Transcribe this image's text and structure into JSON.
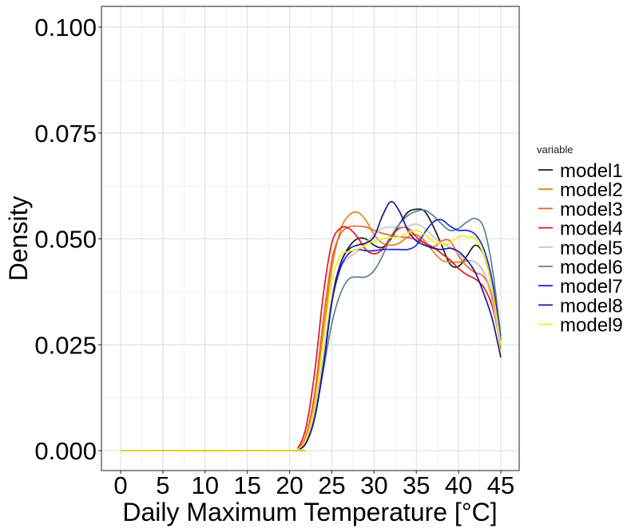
{
  "chart_data": {
    "type": "line",
    "title": "",
    "xlabel": "Daily Maximum Temperature [°C]",
    "ylabel": "Density",
    "xlim": [
      -1,
      47
    ],
    "ylim": [
      -0.005,
      0.105
    ],
    "x_ticks": [
      0,
      5,
      10,
      15,
      20,
      25,
      30,
      35,
      40,
      45
    ],
    "x_tick_labels": [
      "0",
      "5",
      "10",
      "15",
      "20",
      "25",
      "30",
      "35",
      "40",
      "45"
    ],
    "y_ticks": [
      0.0,
      0.025,
      0.05,
      0.075,
      0.1
    ],
    "y_tick_labels": [
      "0.000",
      "0.025",
      "0.050",
      "0.075",
      "0.100"
    ],
    "grid": true,
    "legend": {
      "title": "variable",
      "position": "right"
    },
    "series": [
      {
        "name": "model1",
        "color": "#1a1a1a",
        "x": [
          0,
          20,
          21,
          22,
          23,
          24,
          25,
          26,
          27,
          28,
          29,
          30,
          31,
          32,
          33,
          34,
          35,
          36,
          37,
          38,
          39,
          40,
          41,
          42,
          43,
          44,
          45
        ],
        "y": [
          0,
          0,
          0.0003,
          0.002,
          0.009,
          0.022,
          0.036,
          0.044,
          0.048,
          0.05,
          0.05,
          0.0485,
          0.048,
          0.05,
          0.0535,
          0.0563,
          0.057,
          0.0565,
          0.053,
          0.0485,
          0.044,
          0.0435,
          0.046,
          0.0485,
          0.046,
          0.038,
          0.025
        ]
      },
      {
        "name": "model2",
        "color": "#d4891c",
        "x": [
          0,
          20,
          21,
          22,
          23,
          24,
          25,
          26,
          27,
          28,
          29,
          30,
          31,
          32,
          33,
          34,
          35,
          36,
          37,
          38,
          39,
          40,
          41,
          42,
          43,
          44,
          45
        ],
        "y": [
          0,
          0,
          0.0004,
          0.003,
          0.012,
          0.028,
          0.043,
          0.052,
          0.0555,
          0.0563,
          0.0545,
          0.051,
          0.049,
          0.0485,
          0.049,
          0.0505,
          0.051,
          0.0495,
          0.047,
          0.045,
          0.0445,
          0.0445,
          0.0448,
          0.0445,
          0.042,
          0.036,
          0.024
        ]
      },
      {
        "name": "model3",
        "color": "#f0602a",
        "x": [
          0,
          20,
          21,
          22,
          23,
          24,
          25,
          26,
          27,
          28,
          29,
          30,
          31,
          32,
          33,
          34,
          35,
          36,
          37,
          38,
          39,
          40,
          41,
          42,
          43,
          44,
          45
        ],
        "y": [
          0,
          0,
          0.0005,
          0.004,
          0.014,
          0.031,
          0.045,
          0.051,
          0.0528,
          0.053,
          0.0528,
          0.052,
          0.0513,
          0.0508,
          0.0505,
          0.0503,
          0.0498,
          0.049,
          0.048,
          0.0495,
          0.0495,
          0.046,
          0.0435,
          0.042,
          0.041,
          0.036,
          0.025
        ]
      },
      {
        "name": "model4",
        "color": "#e8141a",
        "x": [
          0,
          20,
          21,
          22,
          23,
          24,
          25,
          26,
          27,
          28,
          29,
          30,
          31,
          32,
          33,
          34,
          35,
          36,
          37,
          38,
          39,
          40,
          41,
          42,
          43,
          44,
          45
        ],
        "y": [
          0,
          0,
          0.0007,
          0.006,
          0.019,
          0.037,
          0.049,
          0.0525,
          0.0525,
          0.0505,
          0.0475,
          0.0465,
          0.0475,
          0.0505,
          0.0525,
          0.0525,
          0.0505,
          0.049,
          0.048,
          0.0465,
          0.045,
          0.043,
          0.0415,
          0.0405,
          0.0385,
          0.034,
          0.025
        ]
      },
      {
        "name": "model5",
        "color": "#c8c8c8",
        "x": [
          0,
          20,
          21,
          22,
          23,
          24,
          25,
          26,
          27,
          28,
          29,
          30,
          31,
          32,
          33,
          34,
          35,
          36,
          37,
          38,
          39,
          40,
          41,
          42,
          43,
          44,
          45
        ],
        "y": [
          0,
          0,
          0.0003,
          0.002,
          0.009,
          0.022,
          0.036,
          0.043,
          0.0455,
          0.047,
          0.049,
          0.051,
          0.0525,
          0.0528,
          0.0528,
          0.053,
          0.0535,
          0.0525,
          0.0505,
          0.049,
          0.048,
          0.0465,
          0.045,
          0.0445,
          0.042,
          0.035,
          0.025
        ]
      },
      {
        "name": "model6",
        "color": "#5f7f94",
        "x": [
          0,
          20,
          21,
          22,
          23,
          24,
          25,
          26,
          27,
          28,
          29,
          30,
          31,
          32,
          33,
          34,
          35,
          36,
          37,
          38,
          39,
          40,
          41,
          42,
          43,
          44,
          45
        ],
        "y": [
          0,
          0,
          0.0003,
          0.002,
          0.008,
          0.019,
          0.03,
          0.037,
          0.0405,
          0.041,
          0.041,
          0.0425,
          0.046,
          0.0505,
          0.0535,
          0.0555,
          0.0565,
          0.0568,
          0.0555,
          0.0535,
          0.052,
          0.0525,
          0.054,
          0.0548,
          0.0525,
          0.043,
          0.027
        ]
      },
      {
        "name": "model7",
        "color": "#1e28d8",
        "x": [
          0,
          20,
          21,
          22,
          23,
          24,
          25,
          26,
          27,
          28,
          29,
          30,
          31,
          32,
          33,
          34,
          35,
          36,
          37,
          38,
          39,
          40,
          41,
          42,
          43,
          44,
          45
        ],
        "y": [
          0,
          0,
          0.0002,
          0.002,
          0.008,
          0.02,
          0.035,
          0.043,
          0.0465,
          0.0475,
          0.0472,
          0.0472,
          0.0475,
          0.0475,
          0.0475,
          0.0475,
          0.0485,
          0.0515,
          0.054,
          0.0545,
          0.053,
          0.052,
          0.052,
          0.051,
          0.0475,
          0.04,
          0.026
        ]
      },
      {
        "name": "model8",
        "color": "#1a1a8c",
        "x": [
          0,
          20,
          21,
          22,
          23,
          24,
          25,
          26,
          27,
          28,
          29,
          30,
          31,
          32,
          33,
          34,
          35,
          36,
          37,
          38,
          39,
          40,
          41,
          42,
          43,
          44,
          45
        ],
        "y": [
          0,
          0,
          0.0002,
          0.002,
          0.008,
          0.02,
          0.035,
          0.044,
          0.0475,
          0.0485,
          0.049,
          0.0505,
          0.0555,
          0.0588,
          0.0565,
          0.052,
          0.0495,
          0.0485,
          0.0478,
          0.0475,
          0.0478,
          0.047,
          0.045,
          0.042,
          0.037,
          0.031,
          0.022
        ]
      },
      {
        "name": "model9",
        "color": "#f5ef1a",
        "x": [
          0,
          20,
          21,
          22,
          23,
          24,
          25,
          26,
          27,
          28,
          29,
          30,
          31,
          32,
          33,
          34,
          35,
          36,
          37,
          38,
          39,
          40,
          41,
          42,
          43,
          44,
          45
        ],
        "y": [
          0,
          0,
          0.0004,
          0.003,
          0.011,
          0.026,
          0.04,
          0.046,
          0.047,
          0.0475,
          0.0485,
          0.0495,
          0.05,
          0.0503,
          0.0505,
          0.0515,
          0.052,
          0.051,
          0.0495,
          0.0488,
          0.049,
          0.0505,
          0.0505,
          0.05,
          0.046,
          0.038,
          0.025
        ]
      }
    ]
  }
}
